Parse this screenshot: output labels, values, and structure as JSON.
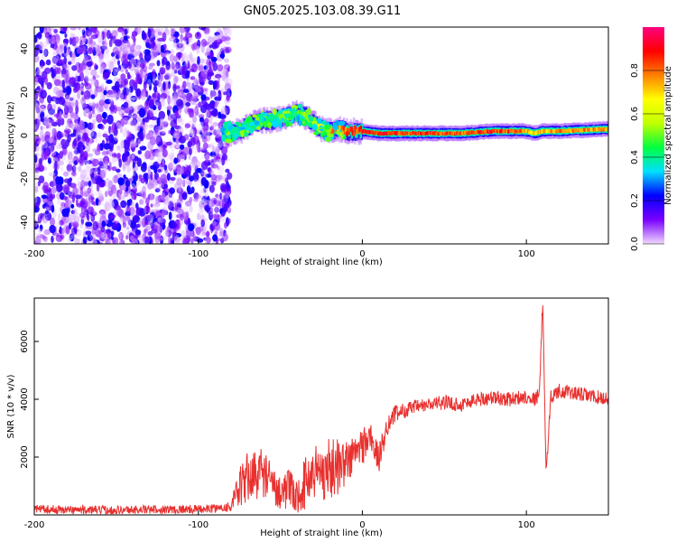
{
  "title": "GN05.2025.103.08.39.G11",
  "chart_data": [
    {
      "type": "heatmap",
      "xlabel": "Height of straight line (km)",
      "ylabel": "Frequency (Hz)",
      "xlim": [
        -200,
        150
      ],
      "ylim": [
        -50,
        50
      ],
      "x_ticks": [
        -200,
        -100,
        0,
        100
      ],
      "y_ticks": [
        -40,
        -20,
        0,
        20,
        40
      ],
      "grid": false,
      "colorbar": {
        "label": "Normalized spectral amplitude",
        "range": [
          0,
          1
        ],
        "ticks": [
          "0.0",
          "0.2",
          "0.4",
          "0.6",
          "0.8"
        ],
        "colormap": [
          "#f0d8ff",
          "#7a00ff",
          "#0000ff",
          "#00e0ff",
          "#00ff40",
          "#c0ff00",
          "#ffff00",
          "#ff8000",
          "#ff0000",
          "#ff0080"
        ]
      },
      "noise_region_x": [
        -200,
        -85
      ],
      "ridge": {
        "x": [
          -85,
          -80,
          -75,
          -70,
          -65,
          -60,
          -55,
          -50,
          -45,
          -40,
          -35,
          -30,
          -25,
          -20,
          -15,
          -10,
          -5,
          0,
          10,
          20,
          40,
          60,
          80,
          100,
          105,
          110,
          120,
          150
        ],
        "freq": [
          2,
          1,
          2,
          4,
          6,
          7,
          7,
          8,
          9,
          10,
          9,
          6,
          3,
          2,
          3,
          2,
          2,
          2,
          1,
          1,
          1,
          1,
          2,
          2,
          1,
          2,
          2,
          3
        ],
        "amplitude": [
          0.3,
          0.4,
          0.4,
          0.4,
          0.45,
          0.5,
          0.45,
          0.5,
          0.45,
          0.5,
          0.55,
          0.6,
          0.7,
          0.8,
          0.8,
          0.85,
          0.9,
          0.9,
          0.9,
          0.9,
          0.9,
          0.85,
          0.9,
          0.8,
          0.7,
          0.75,
          0.8,
          0.8
        ]
      }
    },
    {
      "type": "line",
      "xlabel": "Height of straight line (km)",
      "ylabel": "SNR (10 * v/v)",
      "xlim": [
        -200,
        150
      ],
      "ylim": [
        0,
        7500
      ],
      "x_ticks": [
        -200,
        -100,
        0,
        100
      ],
      "y_ticks": [
        2000,
        4000,
        6000
      ],
      "grid": false,
      "line_color": "#e8302e",
      "series": [
        {
          "x": [
            -200,
            -180,
            -160,
            -140,
            -120,
            -100,
            -90,
            -80,
            -75,
            -70,
            -65,
            -60,
            -55,
            -50,
            -45,
            -40,
            -35,
            -30,
            -25,
            -20,
            -15,
            -10,
            -5,
            0,
            5,
            10,
            15,
            20,
            30,
            40,
            50,
            60,
            70,
            80,
            90,
            100,
            105,
            108,
            110,
            112,
            115,
            120,
            130,
            140,
            150
          ],
          "y": [
            200,
            180,
            170,
            180,
            190,
            200,
            220,
            300,
            900,
            1300,
            1400,
            1500,
            1000,
            800,
            900,
            600,
            1100,
            1500,
            1500,
            1600,
            1700,
            1800,
            2100,
            2400,
            2700,
            1900,
            3100,
            3500,
            3700,
            3800,
            3900,
            3800,
            4000,
            4050,
            4000,
            4100,
            4000,
            4200,
            7500,
            1500,
            4100,
            4300,
            4200,
            4100,
            4000
          ],
          "noise_amplitude": [
            150,
            150,
            150,
            150,
            150,
            150,
            150,
            200,
            700,
            900,
            900,
            900,
            700,
            600,
            700,
            600,
            900,
            1000,
            1100,
            1100,
            1000,
            800,
            700,
            700,
            600,
            500,
            400,
            300,
            250,
            250,
            250,
            250,
            250,
            250,
            250,
            250,
            250,
            250,
            300,
            300,
            250,
            250,
            250,
            250,
            250
          ]
        }
      ]
    }
  ]
}
